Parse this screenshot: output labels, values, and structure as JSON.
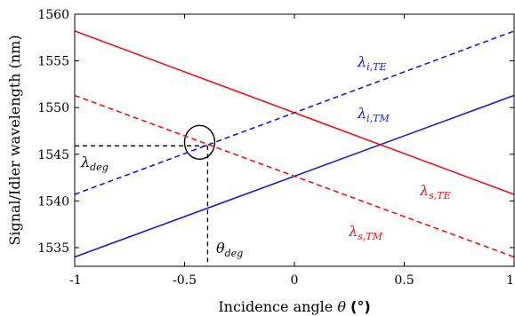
{
  "chart_data": {
    "type": "line",
    "xlabel": "Incidence angle",
    "xlabel_symbol": "θ",
    "xlabel_unit": "(°)",
    "ylabel": "Signal/Idler wavelength (nm)",
    "xlim": [
      -1,
      1
    ],
    "ylim": [
      1533,
      1560
    ],
    "xticks": [
      "-1",
      "-0.5",
      "0",
      "0.5",
      "1"
    ],
    "yticks": [
      "1535",
      "1540",
      "1545",
      "1550",
      "1555",
      "1560"
    ],
    "grid": false,
    "colors": {
      "signal": "#e8141a",
      "idler": "#1a1ad6",
      "guide": "#000000"
    },
    "series": [
      {
        "name": "λi,TE",
        "label": "λ",
        "sub": "i,TE",
        "color": "#1a1ad6",
        "dash": true,
        "x": [
          -1,
          1
        ],
        "y": [
          1540.7,
          1558.2
        ]
      },
      {
        "name": "λi,TM",
        "label": "λ",
        "sub": "i,TM",
        "color": "#1a1ad6",
        "dash": false,
        "x": [
          -1,
          1
        ],
        "y": [
          1534.0,
          1551.3
        ]
      },
      {
        "name": "λs,TE",
        "label": "λ",
        "sub": "s,TE",
        "color": "#e8141a",
        "dash": false,
        "x": [
          -1,
          1
        ],
        "y": [
          1558.2,
          1540.7
        ]
      },
      {
        "name": "λs,TM",
        "label": "λ",
        "sub": "s,TM",
        "color": "#e8141a",
        "dash": true,
        "x": [
          -1,
          1
        ],
        "y": [
          1551.3,
          1534.0
        ]
      }
    ],
    "annotations": {
      "degeneracy_point": {
        "x": -0.395,
        "y": 1545.9
      },
      "lambda_deg": {
        "label": "λ",
        "sub": "deg"
      },
      "theta_deg": {
        "label": "θ",
        "sub": "deg"
      }
    }
  }
}
